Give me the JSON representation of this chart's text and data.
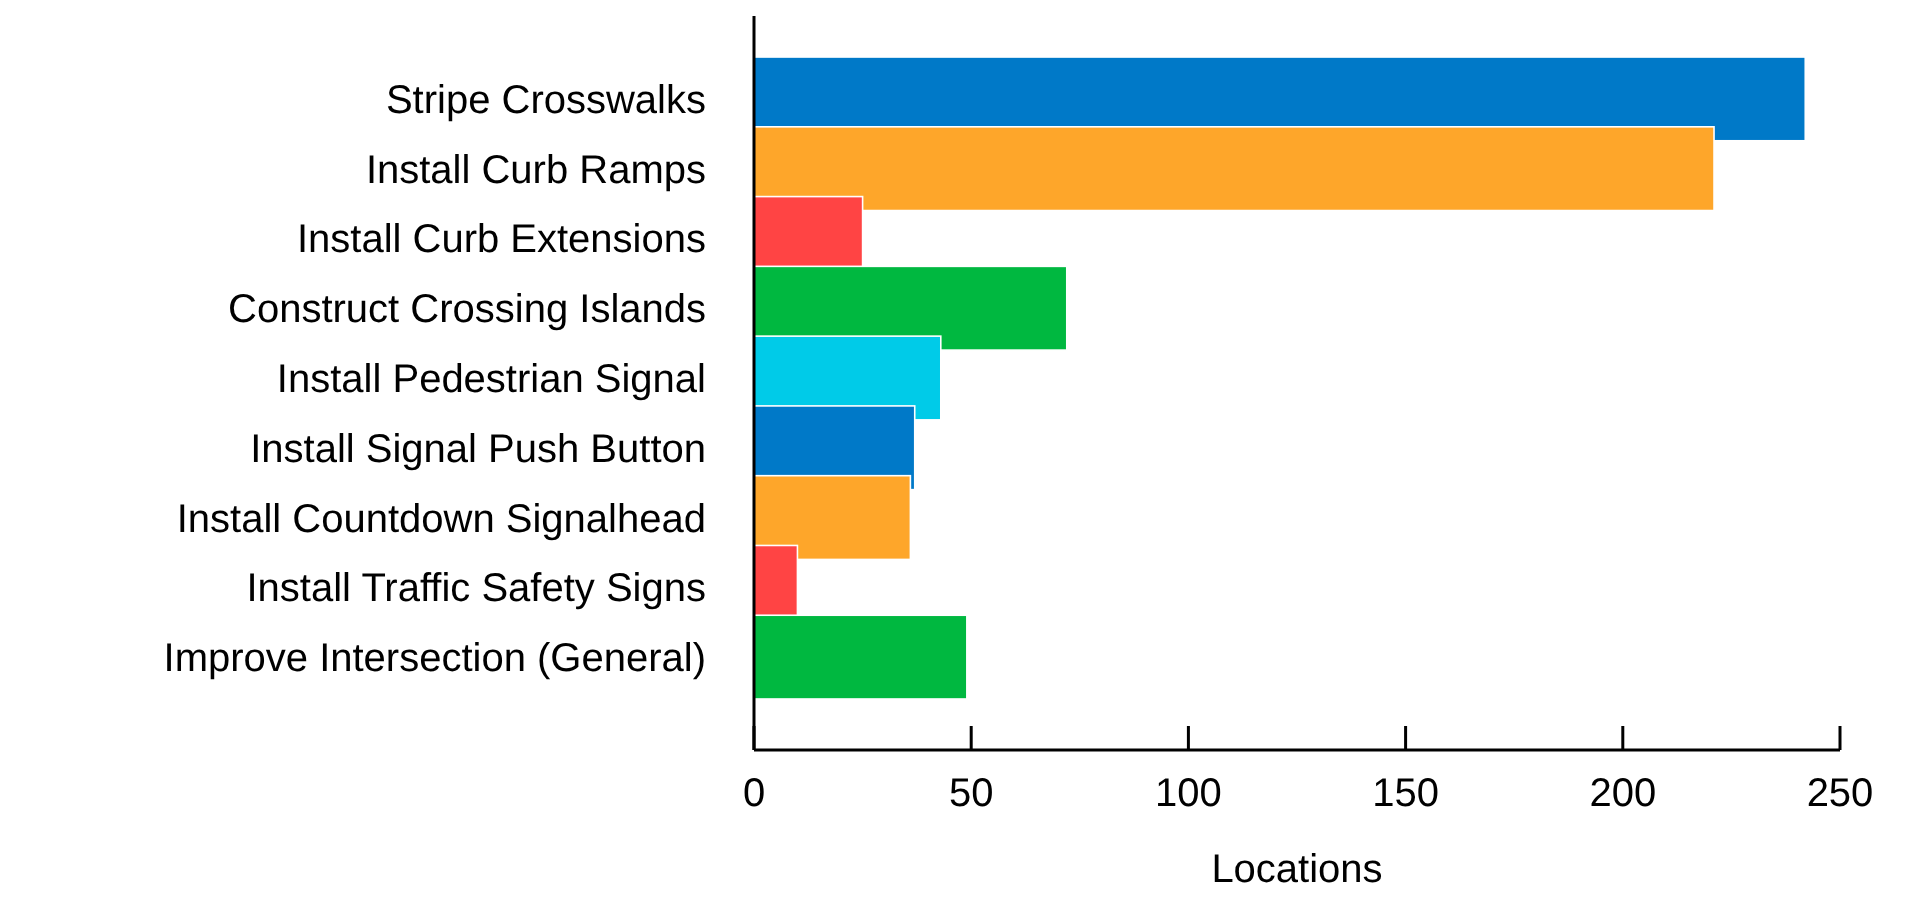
{
  "chart_data": {
    "type": "bar",
    "orientation": "horizontal",
    "xlabel": "Locations",
    "categories": [
      "Stripe Crosswalks",
      "Install Curb Ramps",
      "Install Curb Extensions",
      "Construct Crossing Islands",
      "Install Pedestrian Signal",
      "Install Signal Push Button",
      "Install Countdown Signalhead",
      "Install Traffic Safety Signs",
      "Improve Intersection (General)"
    ],
    "values": [
      242,
      221,
      25,
      72,
      43,
      37,
      36,
      10,
      49
    ],
    "colors": [
      "#0079c8",
      "#fea62a",
      "#ff4444",
      "#00b840",
      "#00cbe8",
      "#0079c8",
      "#fea62a",
      "#ff4444",
      "#00b840"
    ],
    "xlim": [
      0,
      250
    ],
    "xticks": [
      0,
      50,
      100,
      150,
      200,
      250
    ],
    "grid": false
  }
}
